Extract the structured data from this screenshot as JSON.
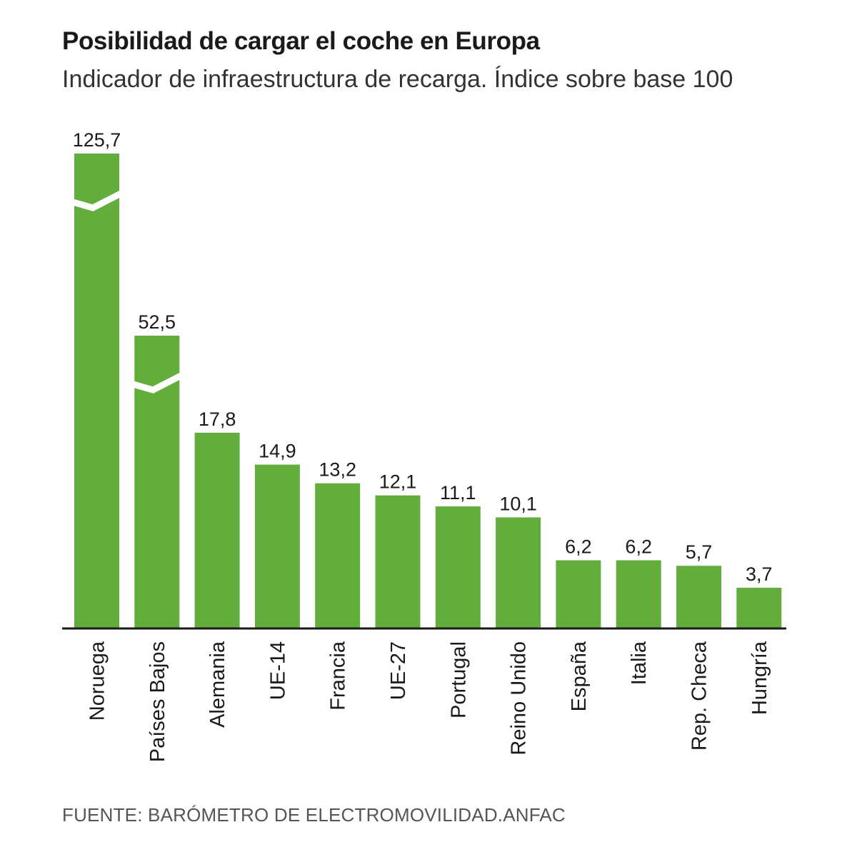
{
  "title": "Posibilidad de cargar el coche en Europa",
  "subtitle": "Indicador de infraestructura de recarga. Índice sobre base 100",
  "source": "FUENTE: BARÓMETRO DE ELECTROMOVILIDAD.ANFAC",
  "colors": {
    "bar": "#62ad3c",
    "axis": "#1a1a1a",
    "text": "#1a1a1a",
    "break": "#ffffff"
  },
  "chart_data": {
    "type": "bar",
    "title": "Posibilidad de cargar el coche en Europa",
    "subtitle": "Indicador de infraestructura de recarga. Índice sobre base 100",
    "categories": [
      "Noruega",
      "Países Bajos",
      "Alemania",
      "UE-14",
      "Francia",
      "UE-27",
      "Portugal",
      "Reino Unido",
      "España",
      "Italia",
      "Rep. Checa",
      "Hungría"
    ],
    "values": [
      125.7,
      52.5,
      17.8,
      14.9,
      13.2,
      12.1,
      11.1,
      10.1,
      6.2,
      6.2,
      5.7,
      3.7
    ],
    "value_labels": [
      "125,7",
      "52,5",
      "17,8",
      "14,9",
      "13,2",
      "12,1",
      "11,1",
      "10,1",
      "6,2",
      "6,2",
      "5,7",
      "3,7"
    ],
    "broken_bars": [
      "Noruega",
      "Países Bajos"
    ],
    "xlabel": "",
    "ylabel": "",
    "grid": false,
    "legend": "none"
  }
}
